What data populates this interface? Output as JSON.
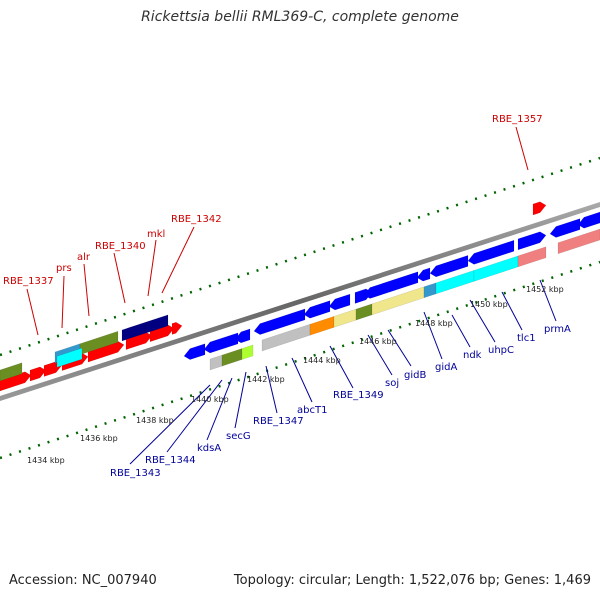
{
  "title": "Rickettsia bellii RML369-C, complete genome",
  "accession_text": "Accession: NC_007940",
  "summary_text": "Topology: circular; Length: 1,522,076 bp; Genes: 1,469",
  "top_labels": [
    "RBE_1337",
    "prs",
    "alr",
    "RBE_1340",
    "mkl",
    "RBE_1342",
    "RBE_1357"
  ],
  "bottom_labels": [
    "RBE_1343",
    "RBE_1344",
    "kdsA",
    "secG",
    "RBE_1347",
    "abcT1",
    "RBE_1349",
    "soj",
    "gidB",
    "gidA",
    "ndk",
    "uhpC",
    "tlc1",
    "prmA"
  ],
  "kbp_labels": [
    "1434 kbp",
    "1436 kbp",
    "1438 kbp",
    "1440 kbp",
    "1442 kbp",
    "1444 kbp",
    "1446 kbp",
    "1448 kbp",
    "1450 kbp",
    "1452 kbp"
  ],
  "colors": {
    "red_gene": "#ff0000",
    "blue_gene": "#0000ff",
    "navy_gene": "#000080",
    "olive_gene": "#6b8e23",
    "cyan_gene": "#00ffff",
    "steelblue_gene": "#3399cc",
    "pink_gene": "#f08080",
    "gray_gene": "#c0c0c0",
    "orange_gene": "#ff8c00",
    "khaki_gene": "#f0e68c",
    "lime_gene": "#adff2f",
    "backbone": "#808080",
    "tick": "#006400"
  }
}
